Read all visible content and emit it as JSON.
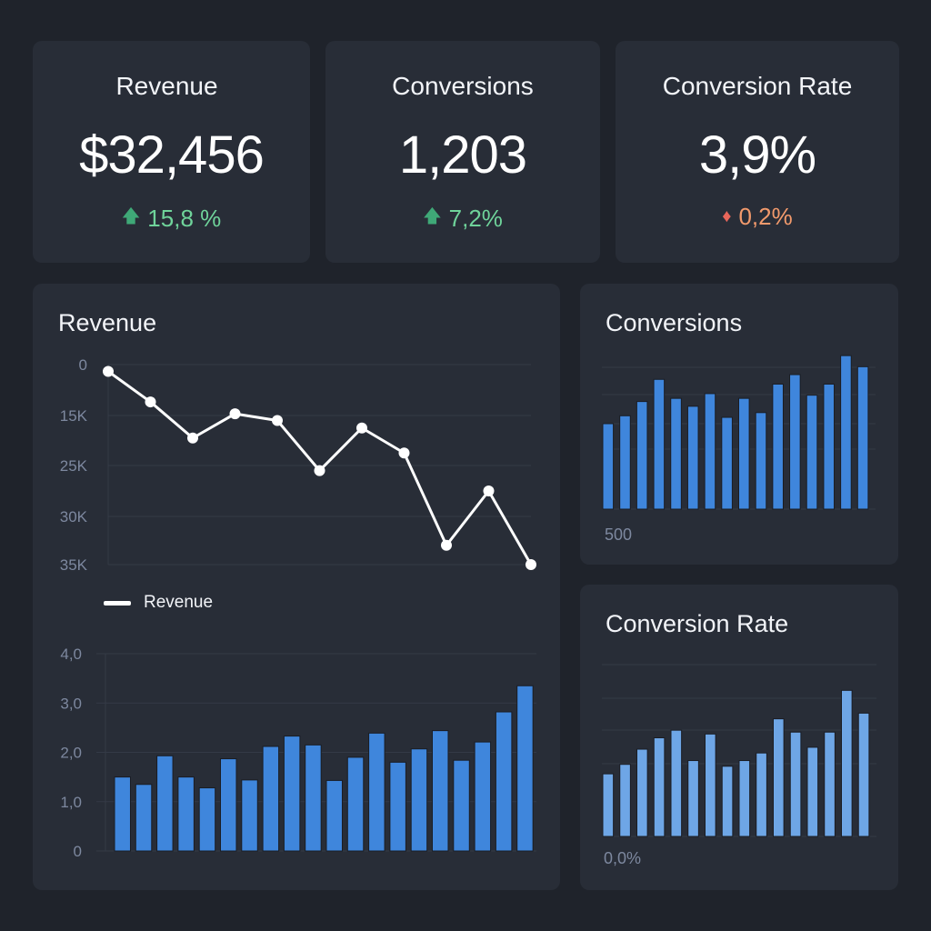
{
  "kpis": [
    {
      "title": "Revenue",
      "value": "$32,456",
      "delta": "15,8 %",
      "direction": "up",
      "icon": "arrow-up-icon",
      "color": "#6fd39a"
    },
    {
      "title": "Conversions",
      "value": "1,203",
      "delta": "7,2%",
      "direction": "up",
      "icon": "arrow-up-icon",
      "color": "#6fd39a"
    },
    {
      "title": "Conversion Rate",
      "value": "3,9%",
      "delta": "0,2%",
      "direction": "down",
      "icon": "diamond-icon",
      "color": "#f29a6c"
    }
  ],
  "colors": {
    "up_icon": "#3fa877",
    "down_icon": "#e8665a",
    "bar": "#3f86dc",
    "bar_light": "#6ea6e6",
    "line": "#ffffff",
    "tick": "#7d889f",
    "grid": "#343a46"
  },
  "revenue_panel": {
    "title": "Revenue",
    "legend": "Revenue"
  },
  "conversions_panel": {
    "title": "Conversions",
    "axis_note": "500"
  },
  "rate_panel": {
    "title": "Conversion Rate",
    "axis_note": "0,0%"
  },
  "chart_data": [
    {
      "type": "line",
      "title": "Revenue",
      "series": [
        {
          "name": "Revenue",
          "values": [
            2000,
            11000,
            19500,
            14500,
            16000,
            25500,
            17500,
            22500,
            33000,
            27500,
            35000
          ]
        }
      ],
      "yticks": [
        "0",
        "15K",
        "25K",
        "30K",
        "35K"
      ],
      "ytick_values": [
        0,
        15000,
        25000,
        30000,
        35000
      ],
      "legend": "bottom-left"
    },
    {
      "type": "bar",
      "title": "",
      "values": [
        1.5,
        1.35,
        1.93,
        1.5,
        1.28,
        1.87,
        1.44,
        2.12,
        2.33,
        2.15,
        1.43,
        1.9,
        2.39,
        1.8,
        2.07,
        2.44,
        1.84,
        2.21,
        2.82,
        3.35
      ],
      "yticks": [
        "0",
        "1,0",
        "2,0",
        "3,0",
        "4,0"
      ],
      "ytick_values": [
        0,
        1,
        2,
        3,
        4
      ],
      "ylim": [
        0,
        4
      ]
    },
    {
      "type": "bar",
      "title": "Conversions",
      "values": [
        540,
        590,
        680,
        820,
        700,
        650,
        730,
        580,
        700,
        610,
        790,
        850,
        720,
        790,
        970,
        900
      ],
      "ylim": [
        0,
        1080
      ],
      "axis_note": "500"
    },
    {
      "type": "bar",
      "title": "Conversion Rate",
      "values": [
        1.65,
        1.9,
        2.3,
        2.6,
        2.8,
        2.0,
        2.7,
        1.85,
        2.0,
        2.2,
        3.1,
        2.75,
        2.35,
        2.75,
        3.85,
        3.25
      ],
      "ylim": [
        0,
        5.2
      ],
      "axis_note": "0,0%"
    }
  ]
}
